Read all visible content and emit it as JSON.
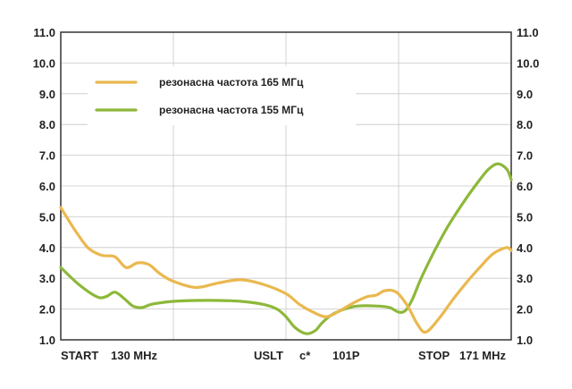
{
  "chart_data": {
    "type": "line",
    "ylim": [
      1.0,
      11.0
    ],
    "y_ticks": [
      "1.0",
      "2.0",
      "3.0",
      "4.0",
      "5.0",
      "6.0",
      "7.0",
      "8.0",
      "9.0",
      "10.0",
      "11.0"
    ],
    "right_axis_ticks": true,
    "grid": true,
    "x_labels": [
      "START",
      "130 MHz",
      "USLT",
      "c*",
      "101P",
      "STOP",
      "171 MHz"
    ],
    "legend_position": "top-left",
    "series": [
      {
        "name": "резонасна частота 165 МГц",
        "color": "#eab84f",
        "x": [
          0,
          0.03,
          0.06,
          0.09,
          0.12,
          0.145,
          0.17,
          0.195,
          0.22,
          0.25,
          0.3,
          0.35,
          0.4,
          0.45,
          0.5,
          0.53,
          0.56,
          0.59,
          0.62,
          0.65,
          0.68,
          0.7,
          0.72,
          0.745,
          0.77,
          0.79,
          0.81,
          0.84,
          0.87,
          0.9,
          0.93,
          0.96,
          0.99,
          1.0
        ],
        "y": [
          5.3,
          4.6,
          4.0,
          3.75,
          3.7,
          3.35,
          3.5,
          3.45,
          3.15,
          2.9,
          2.7,
          2.85,
          2.95,
          2.8,
          2.5,
          2.15,
          1.9,
          1.75,
          1.95,
          2.2,
          2.4,
          2.45,
          2.6,
          2.55,
          2.1,
          1.55,
          1.25,
          1.7,
          2.3,
          2.85,
          3.35,
          3.8,
          4.0,
          3.9
        ]
      },
      {
        "name": "резонасна частота 155 МГц",
        "color": "#8db83a",
        "x": [
          0,
          0.04,
          0.08,
          0.1,
          0.12,
          0.14,
          0.16,
          0.18,
          0.2,
          0.22,
          0.25,
          0.3,
          0.35,
          0.4,
          0.45,
          0.48,
          0.5,
          0.52,
          0.545,
          0.565,
          0.58,
          0.6,
          0.63,
          0.66,
          0.7,
          0.73,
          0.75,
          0.765,
          0.78,
          0.8,
          0.83,
          0.86,
          0.9,
          0.93,
          0.95,
          0.97,
          0.99,
          1.0
        ],
        "y": [
          3.35,
          2.8,
          2.4,
          2.4,
          2.55,
          2.35,
          2.1,
          2.05,
          2.15,
          2.2,
          2.25,
          2.28,
          2.28,
          2.25,
          2.15,
          2.0,
          1.75,
          1.4,
          1.2,
          1.3,
          1.55,
          1.8,
          2.0,
          2.1,
          2.1,
          2.05,
          1.9,
          1.95,
          2.3,
          3.0,
          3.9,
          4.7,
          5.6,
          6.2,
          6.55,
          6.72,
          6.55,
          6.2
        ]
      }
    ]
  }
}
